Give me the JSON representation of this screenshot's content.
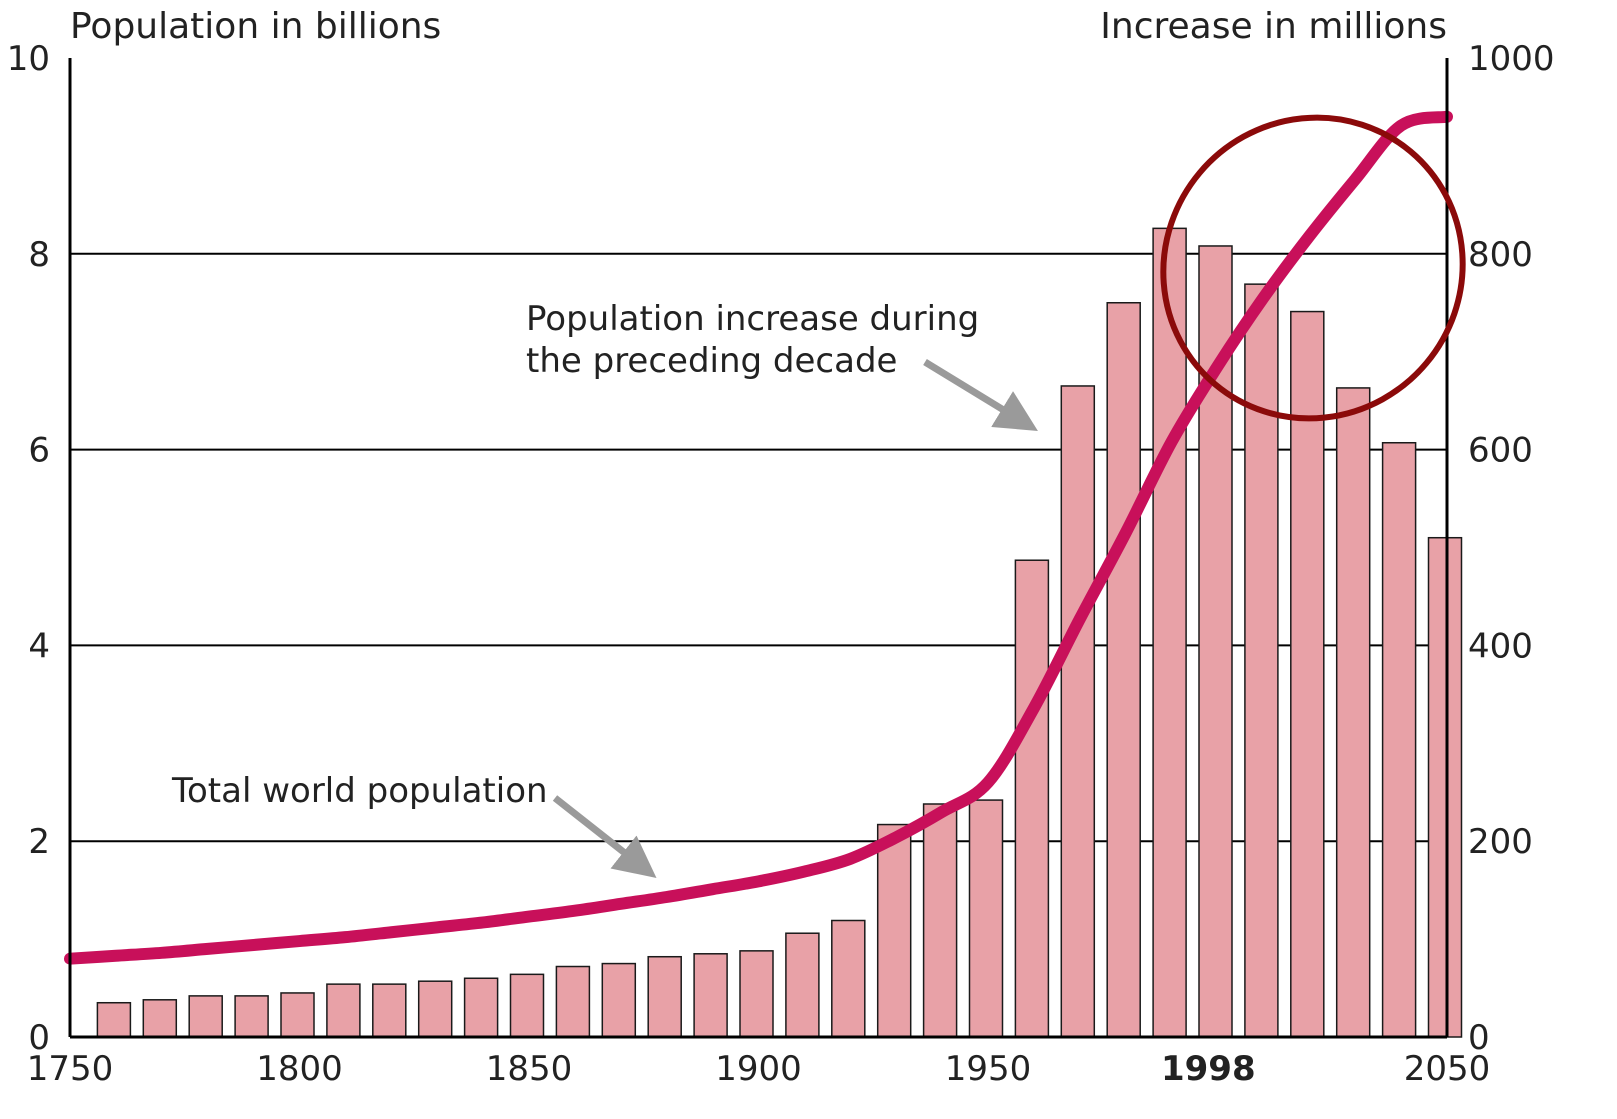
{
  "chart_data": {
    "type": "bar",
    "title": "",
    "left_axis_title": "Population in billions",
    "right_axis_title": "Increase in millions",
    "ylim_left": [
      0,
      10
    ],
    "ylim_right": [
      0,
      1000
    ],
    "yticks_left": [
      "0",
      "2",
      "4",
      "6",
      "8",
      "10"
    ],
    "yticks_right": [
      "0",
      "200",
      "400",
      "600",
      "800",
      "1000"
    ],
    "xlim": [
      1750,
      2050
    ],
    "xticks": [
      "1750",
      "1800",
      "1850",
      "1900",
      "1950",
      "1998",
      "2050"
    ],
    "grid": "horizontal lines at 2, 4, 6, 8 (left axis)",
    "annotations": {
      "bars_label_line1": "Population increase during",
      "bars_label_line2": "the preceding decade",
      "line_label": "Total world population"
    },
    "highlight": "ellipse around the 2000–2050 segment of the population line",
    "colors": {
      "bar_fill": "#e8a1a7",
      "bar_stroke": "#1a1a1a",
      "line": "#c8105a",
      "ellipse": "#8b0a0a",
      "grid": "#000000",
      "arrow": "#9a9a9a"
    },
    "series": [
      {
        "name": "Population increase during the preceding decade",
        "axis": "right",
        "type": "bar",
        "x": [
          1760,
          1770,
          1780,
          1790,
          1800,
          1810,
          1820,
          1830,
          1840,
          1850,
          1860,
          1870,
          1880,
          1890,
          1900,
          1910,
          1920,
          1930,
          1940,
          1950,
          1960,
          1970,
          1980,
          1990,
          2000,
          2010,
          2020,
          2030,
          2040,
          2050
        ],
        "values": [
          35,
          38,
          42,
          42,
          45,
          54,
          54,
          57,
          60,
          64,
          72,
          75,
          82,
          85,
          88,
          106,
          119,
          217,
          238,
          242,
          487,
          665,
          750,
          826,
          808,
          769,
          741,
          663,
          607,
          510
        ]
      },
      {
        "name": "Total world population",
        "axis": "left",
        "type": "line",
        "x": [
          1750,
          1760,
          1770,
          1780,
          1790,
          1800,
          1810,
          1820,
          1830,
          1840,
          1850,
          1860,
          1870,
          1880,
          1890,
          1900,
          1910,
          1920,
          1930,
          1940,
          1950,
          1960,
          1970,
          1980,
          1990,
          2000,
          2010,
          2020,
          2030,
          2040,
          2050
        ],
        "values": [
          0.8,
          0.83,
          0.86,
          0.9,
          0.94,
          0.98,
          1.02,
          1.07,
          1.12,
          1.17,
          1.23,
          1.29,
          1.36,
          1.43,
          1.51,
          1.59,
          1.69,
          1.82,
          2.04,
          2.3,
          2.6,
          3.36,
          4.27,
          5.15,
          6.08,
          6.85,
          7.55,
          8.18,
          8.76,
          9.31,
          9.4
        ]
      }
    ]
  }
}
